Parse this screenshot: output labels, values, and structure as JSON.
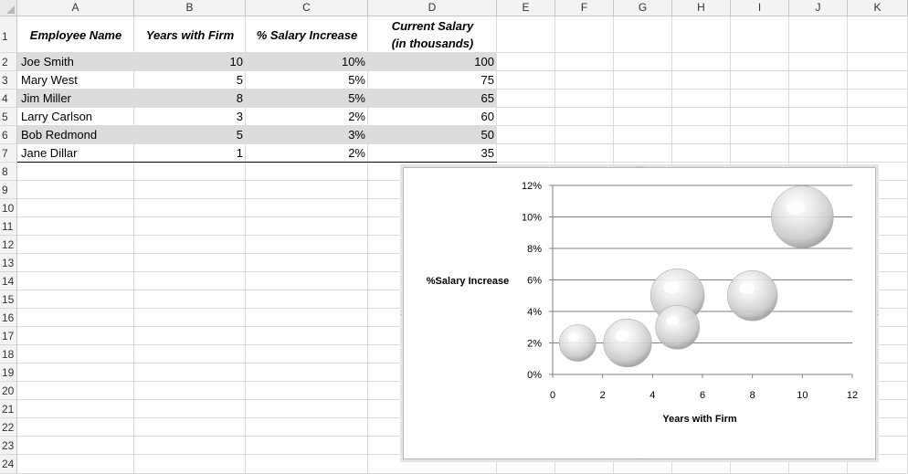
{
  "columns": [
    "A",
    "B",
    "C",
    "D",
    "E",
    "F",
    "G",
    "H",
    "I",
    "J",
    "K"
  ],
  "rows": [
    "1",
    "2",
    "3",
    "4",
    "5",
    "6",
    "7",
    "8",
    "9",
    "10",
    "11",
    "12",
    "13",
    "14",
    "15",
    "16",
    "17",
    "18",
    "19",
    "20",
    "21",
    "22",
    "23",
    "24"
  ],
  "table": {
    "headers": {
      "name": "Employee Name",
      "years": "Years with Firm",
      "increase": "% Salary Increase",
      "salary_line1": "Current Salary",
      "salary_line2": "(in thousands)"
    },
    "records": [
      {
        "name": "Joe Smith",
        "years": "10",
        "increase": "10%",
        "salary": "100"
      },
      {
        "name": "Mary West",
        "years": "5",
        "increase": "5%",
        "salary": "75"
      },
      {
        "name": "Jim Miller",
        "years": "8",
        "increase": "5%",
        "salary": "65"
      },
      {
        "name": "Larry Carlson",
        "years": "3",
        "increase": "2%",
        "salary": "60"
      },
      {
        "name": "Bob Redmond",
        "years": "5",
        "increase": "3%",
        "salary": "50"
      },
      {
        "name": "Jane Dillar",
        "years": "1",
        "increase": "2%",
        "salary": "35"
      }
    ]
  },
  "chart_data": {
    "type": "scatter",
    "subtype": "bubble",
    "xlabel": "Years with Firm",
    "ylabel": "%Salary Increase",
    "xlim": [
      0,
      12
    ],
    "ylim": [
      0,
      12
    ],
    "x_ticks": [
      "0",
      "2",
      "4",
      "6",
      "8",
      "10",
      "12"
    ],
    "y_ticks": [
      "0%",
      "2%",
      "4%",
      "6%",
      "8%",
      "10%",
      "12%"
    ],
    "grid": "horizontal",
    "points": [
      {
        "x": 10,
        "y": 10,
        "size": 100
      },
      {
        "x": 5,
        "y": 5,
        "size": 75
      },
      {
        "x": 8,
        "y": 5,
        "size": 65
      },
      {
        "x": 3,
        "y": 2,
        "size": 60
      },
      {
        "x": 5,
        "y": 3,
        "size": 50
      },
      {
        "x": 1,
        "y": 2,
        "size": 35
      }
    ]
  }
}
